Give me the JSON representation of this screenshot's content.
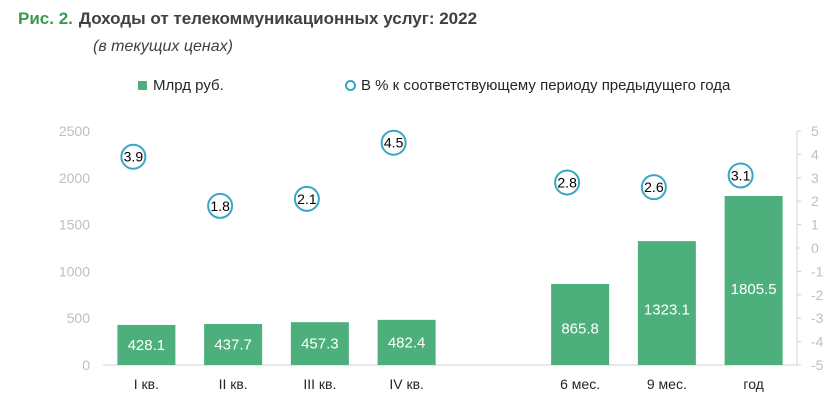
{
  "figure": {
    "label": "Рис. 2.",
    "title": "Доходы от телекоммуникационных услуг: 2022",
    "subtitle": "(в текущих ценах)"
  },
  "legend": {
    "bars": "Млрд руб.",
    "markers": "В % к соответствующему периоду предыдущего года"
  },
  "colors": {
    "bar": "#4daf7c",
    "marker": "#3aa6c6",
    "title_accent": "#3a9b4d"
  },
  "chart_data": {
    "type": "bar",
    "categories": [
      "I кв.",
      "II кв.",
      "III кв.",
      "IV кв.",
      "",
      "6 мес.",
      "9 мес.",
      "год"
    ],
    "series": [
      {
        "name": "Млрд руб.",
        "type": "bar",
        "axis": "left",
        "values": [
          428.1,
          437.7,
          457.3,
          482.4,
          null,
          865.8,
          1323.1,
          1805.5
        ]
      },
      {
        "name": "В % к соответствующему периоду предыдущего года",
        "type": "scatter",
        "axis": "right",
        "values": [
          3.9,
          1.8,
          2.1,
          4.5,
          null,
          2.8,
          2.6,
          3.1
        ]
      }
    ],
    "y_left": {
      "range": [
        0,
        2500
      ],
      "ticks": [
        0,
        500,
        1000,
        1500,
        2000,
        2500
      ]
    },
    "y_right": {
      "range": [
        -5,
        5
      ],
      "ticks": [
        -5,
        -4,
        -3,
        -2,
        -1,
        0,
        1,
        2,
        3,
        4,
        5
      ]
    },
    "legend_position": "top",
    "grid": false
  }
}
